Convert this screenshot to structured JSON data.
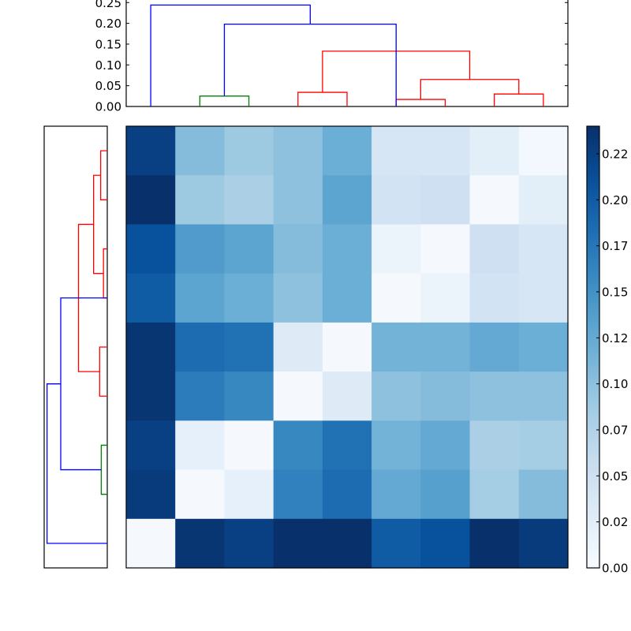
{
  "chart_data": [
    {
      "type": "dendrogram",
      "position": "top",
      "orientation": "vertical",
      "ylabel": "",
      "xlabel": "",
      "ylim": [
        0,
        0.25
      ],
      "yticks": [
        "0.00",
        "0.05",
        "0.10",
        "0.15",
        "0.20",
        "0.25"
      ],
      "leaf_count": 9,
      "links": [
        {
          "left_leaf_x": 1,
          "right_leaf_x": 2,
          "height": 0.025,
          "color": "#008000"
        },
        {
          "left_leaf_x": 3,
          "right_leaf_x": 4,
          "height": 0.034,
          "color": "#ff0000"
        },
        {
          "left_leaf_x": 5,
          "right_leaf_x": 6,
          "height": 0.017,
          "color": "#ff0000"
        },
        {
          "left_leaf_x": 7,
          "right_leaf_x": 8,
          "height": 0.03,
          "color": "#ff0000"
        },
        {
          "left_leaf_x": 5.5,
          "right_leaf_x": 7.5,
          "height": 0.065,
          "color": "#ff0000"
        },
        {
          "left_leaf_x": 3.5,
          "right_leaf_x": 6.5,
          "height": 0.133,
          "color": "#ff0000"
        },
        {
          "left_leaf_x": 1.5,
          "right_leaf_x": 5.0,
          "height": 0.198,
          "color": "#0000ff"
        },
        {
          "left_leaf_x": 0,
          "right_leaf_x": 3.25,
          "height": 0.244,
          "color": "#0000ff"
        }
      ]
    },
    {
      "type": "dendrogram",
      "position": "left",
      "orientation": "horizontal",
      "leaf_count": 9,
      "links": [
        {
          "top_leaf_y": 0,
          "bottom_leaf_y": 1,
          "height": 0.024,
          "color": "#ff0000"
        },
        {
          "top_leaf_y": 2,
          "bottom_leaf_y": 3,
          "height": 0.014,
          "color": "#ff0000"
        },
        {
          "top_leaf_y": 0.5,
          "bottom_leaf_y": 2.5,
          "height": 0.05,
          "color": "#ff0000"
        },
        {
          "top_leaf_y": 4,
          "bottom_leaf_y": 5,
          "height": 0.028,
          "color": "#ff0000"
        },
        {
          "top_leaf_y": 1.5,
          "bottom_leaf_y": 4.5,
          "height": 0.105,
          "color": "#ff0000"
        },
        {
          "top_leaf_y": 6,
          "bottom_leaf_y": 7,
          "height": 0.022,
          "color": "#008000"
        },
        {
          "top_leaf_y": 3.0,
          "bottom_leaf_y": 6.5,
          "height": 0.17,
          "color": "#0000ff"
        },
        {
          "top_leaf_y": 4.75,
          "bottom_leaf_y": 8,
          "height": 0.22,
          "color": "#0000ff"
        }
      ]
    },
    {
      "type": "heatmap",
      "position": "center",
      "colormap": "Blues",
      "vmin": 0.0,
      "vmax": 0.24,
      "rows": 9,
      "cols": 9,
      "values": [
        [
          0.225,
          0.105,
          0.09,
          0.1,
          0.12,
          0.04,
          0.04,
          0.025,
          0.005
        ],
        [
          0.24,
          0.09,
          0.08,
          0.1,
          0.13,
          0.045,
          0.05,
          0.003,
          0.025
        ],
        [
          0.21,
          0.14,
          0.13,
          0.105,
          0.12,
          0.015,
          0.003,
          0.05,
          0.04
        ],
        [
          0.2,
          0.13,
          0.12,
          0.1,
          0.12,
          0.003,
          0.015,
          0.045,
          0.04
        ],
        [
          0.235,
          0.185,
          0.18,
          0.03,
          0.003,
          0.115,
          0.115,
          0.125,
          0.12
        ],
        [
          0.235,
          0.17,
          0.16,
          0.003,
          0.03,
          0.1,
          0.105,
          0.1,
          0.1
        ],
        [
          0.225,
          0.02,
          0.003,
          0.16,
          0.18,
          0.115,
          0.125,
          0.08,
          0.085
        ],
        [
          0.23,
          0.003,
          0.02,
          0.165,
          0.185,
          0.125,
          0.135,
          0.085,
          0.105
        ],
        [
          0.003,
          0.235,
          0.225,
          0.24,
          0.24,
          0.2,
          0.21,
          0.24,
          0.23
        ]
      ]
    },
    {
      "type": "colorbar",
      "position": "right",
      "colormap": "Blues",
      "range": [
        0.0,
        0.24
      ],
      "tick_values": [
        0.0,
        0.025,
        0.05,
        0.075,
        0.1,
        0.125,
        0.15,
        0.175,
        0.2,
        0.225
      ],
      "tick_labels": [
        "0.00",
        "0.02",
        "0.05",
        "0.07",
        "0.10",
        "0.12",
        "0.15",
        "0.17",
        "0.20",
        "0.22"
      ]
    }
  ],
  "colors": {
    "dendro_blue": "#0000ff",
    "dendro_red": "#ff0000",
    "dendro_green": "#008000"
  }
}
